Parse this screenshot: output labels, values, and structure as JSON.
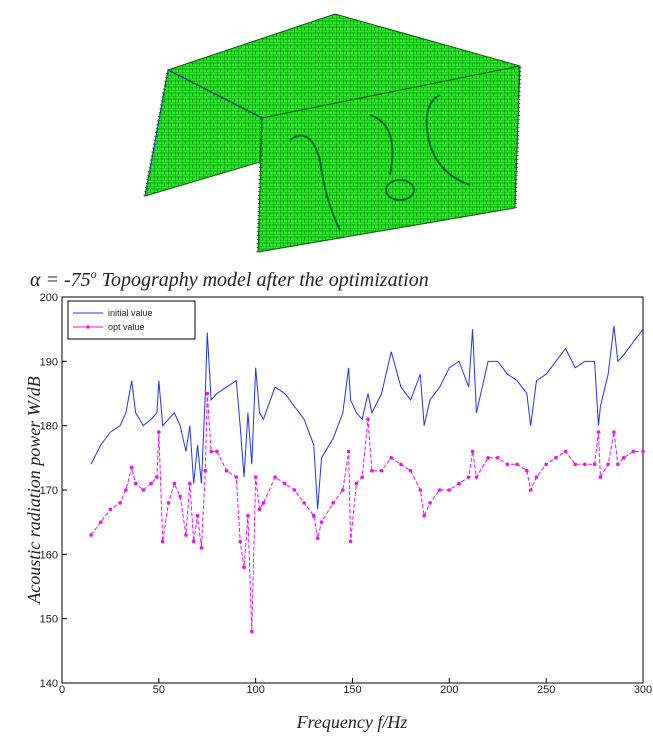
{
  "caption": {
    "prefix": "α = -75",
    "sup": "o",
    "text": " Topography model after the optimization"
  },
  "chart_data": {
    "type": "line",
    "x_label": "Frequency f/Hz",
    "y_label": "Acoustic radiation power W/dB",
    "xlim": [
      0,
      300
    ],
    "xticks": [
      0,
      50,
      100,
      150,
      200,
      250,
      300
    ],
    "ylim": [
      140,
      200
    ],
    "yticks": [
      140,
      150,
      160,
      170,
      180,
      190,
      200
    ],
    "legend": "upper-left",
    "x": [
      15,
      20,
      25,
      30,
      33,
      36,
      38,
      42,
      46,
      49,
      50,
      52,
      55,
      58,
      61,
      64,
      66,
      68,
      70,
      72,
      74,
      75,
      77,
      80,
      85,
      90,
      92,
      94,
      96,
      98,
      100,
      102,
      104,
      110,
      115,
      120,
      125,
      130,
      132,
      134,
      140,
      145,
      148,
      149,
      152,
      155,
      158,
      160,
      165,
      170,
      175,
      180,
      185,
      187,
      190,
      195,
      200,
      205,
      210,
      212,
      214,
      220,
      225,
      230,
      235,
      240,
      242,
      245,
      250,
      255,
      260,
      265,
      270,
      275,
      277,
      278,
      282,
      285,
      287,
      290,
      295,
      300
    ],
    "series": [
      {
        "name": "initial value",
        "color": "#2233ee",
        "markers": false,
        "values": [
          174,
          177,
          179,
          180,
          182,
          187,
          182,
          180,
          181,
          182,
          187,
          180,
          181,
          182,
          180,
          176,
          180,
          171,
          177,
          171,
          185,
          194.5,
          184,
          185,
          186,
          187,
          180,
          172,
          182,
          174,
          189,
          182,
          181,
          186,
          185,
          183,
          181,
          177,
          167,
          175,
          178,
          182,
          189,
          184,
          182,
          181,
          185,
          182,
          185,
          191.5,
          186,
          184,
          188,
          180,
          184,
          186,
          189,
          190,
          186,
          195,
          182,
          190,
          190,
          188,
          187,
          185,
          180,
          187,
          188,
          190,
          192,
          189,
          190,
          190,
          180,
          183,
          188,
          195.5,
          190,
          191,
          193,
          195
        ]
      },
      {
        "name": "opt value",
        "color": "#ee11ee",
        "markers": true,
        "values": [
          163,
          165,
          167,
          168,
          170,
          173.5,
          171,
          170,
          171,
          172,
          179,
          162,
          168,
          171,
          169,
          163,
          171,
          162,
          166,
          161,
          173,
          185,
          176,
          176,
          173,
          172,
          162,
          158,
          166,
          148,
          172,
          167,
          168,
          172,
          171,
          170,
          168,
          166,
          162.5,
          165,
          168,
          170,
          176,
          162,
          171,
          172,
          181,
          173,
          173,
          175,
          174,
          173,
          170,
          166,
          168,
          170,
          170,
          171,
          172,
          176,
          172,
          175,
          175,
          174,
          174,
          173,
          170,
          172,
          174,
          175,
          176,
          174,
          174,
          174,
          179,
          172,
          174,
          179,
          174,
          175,
          176,
          176
        ]
      }
    ]
  }
}
